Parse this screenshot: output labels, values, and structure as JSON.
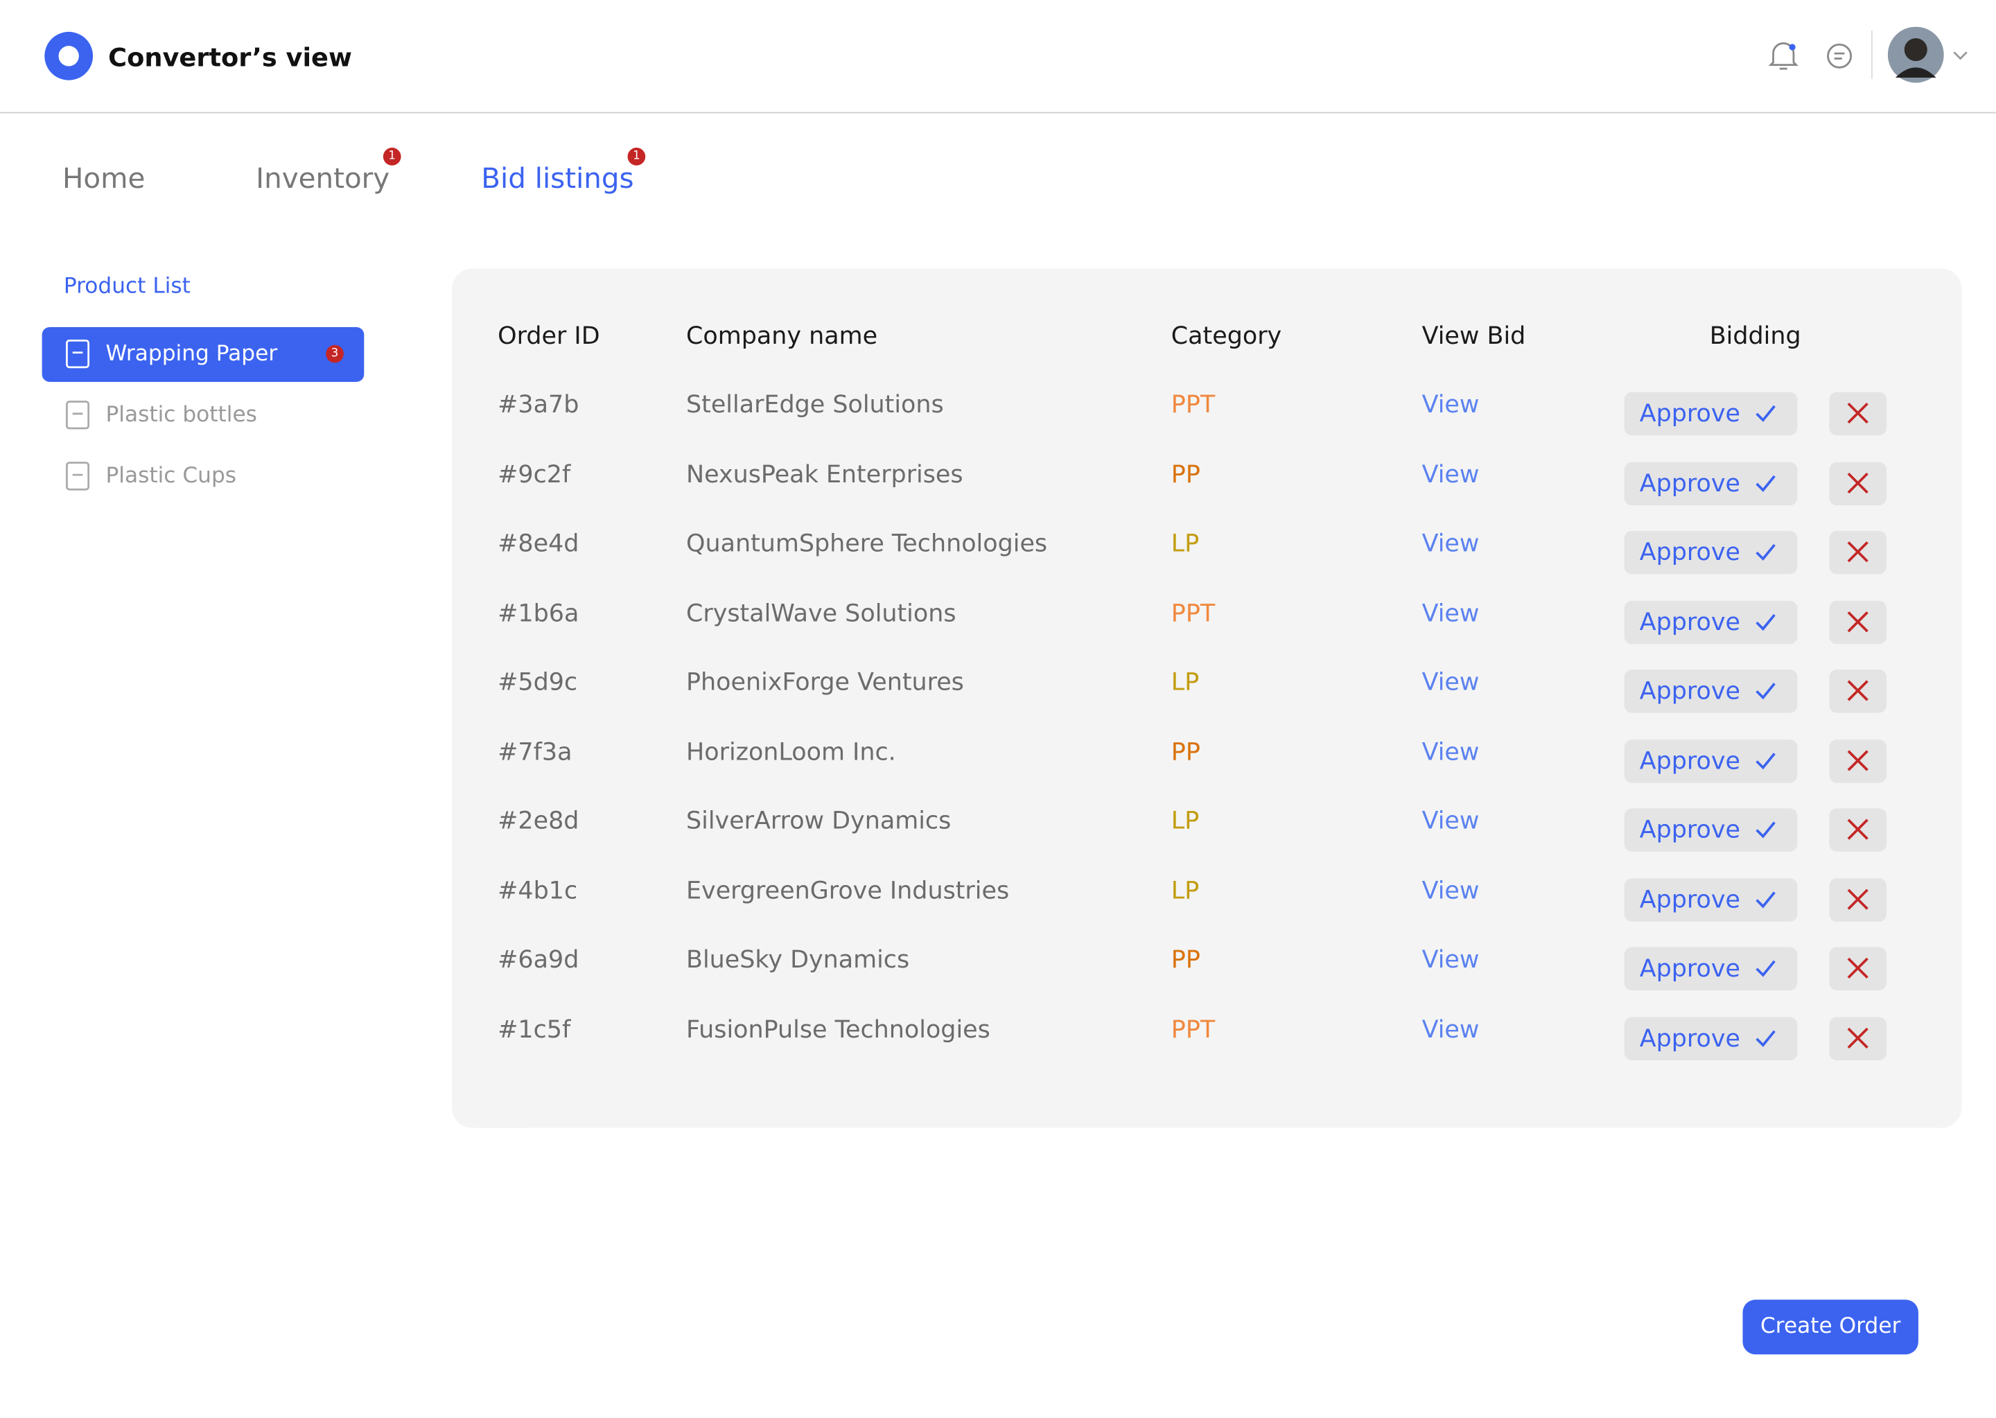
{
  "header": {
    "title": "Convertor’s view"
  },
  "nav": [
    {
      "label": "Home"
    },
    {
      "label": "Inventory",
      "badge": "1"
    },
    {
      "label": "Bid listings",
      "badge": "1"
    }
  ],
  "sidebar": {
    "heading": "Product List",
    "items": [
      {
        "label": "Wrapping Paper",
        "badge": "3"
      },
      {
        "label": "Plastic bottles"
      },
      {
        "label": "Plastic Cups"
      }
    ]
  },
  "table": {
    "headers": [
      "Order ID",
      "Company name",
      "Category",
      "View Bid",
      "Bidding"
    ],
    "category_colors": {
      "PPT": "#f0883e",
      "PP": "#d9730d",
      "LP": "#c29d10"
    },
    "rows": [
      [
        "#3a7b",
        "StellarEdge Solutions",
        "PPT",
        "View",
        "Approve"
      ],
      [
        "#9c2f",
        "NexusPeak Enterprises",
        "PP",
        "View",
        "Approve"
      ],
      [
        "#8e4d",
        "QuantumSphere Technologies",
        "LP",
        "View",
        "Approve"
      ],
      [
        "#1b6a",
        "CrystalWave Solutions",
        "PPT",
        "View",
        "Approve"
      ],
      [
        "#5d9c",
        "PhoenixForge Ventures",
        "LP",
        "View",
        "Approve"
      ],
      [
        "#7f3a",
        "HorizonLoom Inc.",
        "PP",
        "View",
        "Approve"
      ],
      [
        "#2e8d",
        "SilverArrow Dynamics",
        "LP",
        "View",
        "Approve"
      ],
      [
        "#4b1c",
        "EvergreenGrove Industries",
        "LP",
        "View",
        "Approve"
      ],
      [
        "#6a9d",
        "BlueSky Dynamics",
        "PP",
        "View",
        "Approve"
      ],
      [
        "#1c5f",
        "FusionPulse Technologies",
        "PPT",
        "View",
        "Approve"
      ]
    ]
  },
  "footer": {
    "button": "Create Order"
  }
}
